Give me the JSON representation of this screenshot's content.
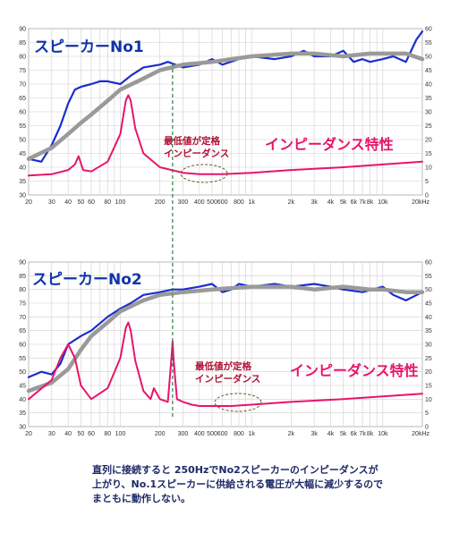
{
  "chart_data": [
    {
      "type": "line",
      "title": "スピーカーNo1",
      "x_scale": "log",
      "xlim": [
        20,
        20000
      ],
      "ylim_left": [
        30,
        90
      ],
      "ylim_right": [
        0,
        60
      ],
      "y_left_ticks": [
        30,
        35,
        40,
        45,
        50,
        55,
        60,
        65,
        70,
        75,
        80,
        85,
        90
      ],
      "y_right_ticks": [
        0,
        5,
        10,
        15,
        20,
        25,
        30,
        35,
        40,
        45,
        50,
        55,
        60
      ],
      "x_ticks": [
        "20",
        "30",
        "40",
        "50",
        "60",
        "80",
        "100",
        "200",
        "300",
        "400",
        "500",
        "600",
        "800",
        "1k",
        "2k",
        "3k",
        "4k",
        "5k",
        "6k",
        "7k",
        "8k",
        "10k",
        "20kHz"
      ],
      "grid": true,
      "impedance_label": "インピーダンス特性",
      "annotation": [
        "最低値が定格",
        "インピーダンス"
      ],
      "series": [
        {
          "color": "#1a2ecc",
          "axis": "left",
          "x": [
            20,
            25,
            30,
            35,
            40,
            45,
            50,
            60,
            70,
            80,
            100,
            120,
            150,
            200,
            230,
            300,
            400,
            500,
            600,
            800,
            1000,
            1500,
            2000,
            2500,
            3000,
            4000,
            5000,
            6000,
            7000,
            8000,
            10000,
            12000,
            15000,
            18000,
            20000
          ],
          "values": [
            43,
            42,
            48,
            55,
            63,
            68,
            69,
            70,
            71,
            71,
            70,
            73,
            76,
            77,
            78,
            76,
            77,
            79,
            77,
            79,
            80,
            79,
            80,
            82,
            80,
            80,
            82,
            78,
            79,
            78,
            79,
            80,
            78,
            86,
            89
          ]
        },
        {
          "color": "#9a9a9a",
          "axis": "left",
          "x": [
            20,
            30,
            40,
            50,
            60,
            80,
            100,
            150,
            200,
            300,
            500,
            1000,
            2000,
            3000,
            5000,
            8000,
            10000,
            15000,
            20000
          ],
          "values": [
            43,
            47,
            52,
            56,
            59,
            64,
            68,
            72,
            75,
            77,
            78,
            80,
            81,
            81,
            80,
            81,
            81,
            81,
            79
          ]
        },
        {
          "color": "#e8146a",
          "axis": "right",
          "x": [
            20,
            30,
            40,
            45,
            48,
            52,
            60,
            80,
            100,
            110,
            115,
            120,
            130,
            150,
            200,
            300,
            400,
            600,
            1000,
            2000,
            5000,
            10000,
            20000
          ],
          "values": [
            7,
            7.5,
            9,
            11,
            14,
            9,
            8.5,
            12,
            22,
            34,
            36,
            34,
            24,
            15,
            10,
            8,
            7.5,
            7.5,
            8,
            9,
            10,
            11,
            12
          ]
        }
      ]
    },
    {
      "type": "line",
      "title": "スピーカーNo2",
      "x_scale": "log",
      "xlim": [
        20,
        20000
      ],
      "ylim_left": [
        30,
        90
      ],
      "ylim_right": [
        0,
        60
      ],
      "y_left_ticks": [
        30,
        35,
        40,
        45,
        50,
        55,
        60,
        65,
        70,
        75,
        80,
        85,
        90
      ],
      "y_right_ticks": [
        0,
        5,
        10,
        15,
        20,
        25,
        30,
        35,
        40,
        45,
        50,
        55,
        60
      ],
      "x_ticks": [
        "20",
        "30",
        "40",
        "50",
        "60",
        "80",
        "100",
        "200",
        "300",
        "400",
        "500",
        "600",
        "800",
        "1k",
        "2k",
        "3k",
        "4k",
        "5k",
        "6k",
        "7k",
        "8k",
        "10k",
        "20kHz"
      ],
      "grid": true,
      "impedance_label": "インピーダンス特性",
      "annotation": [
        "最低値が定格",
        "インピーダンス"
      ],
      "series": [
        {
          "color": "#1a2ecc",
          "axis": "left",
          "x": [
            20,
            25,
            30,
            35,
            40,
            50,
            60,
            80,
            100,
            120,
            150,
            200,
            250,
            300,
            400,
            500,
            600,
            700,
            800,
            1000,
            1500,
            2000,
            3000,
            4000,
            5000,
            7000,
            10000,
            12000,
            15000,
            20000
          ],
          "values": [
            48,
            50,
            49,
            53,
            60,
            63,
            65,
            70,
            73,
            75,
            78,
            79,
            80,
            80,
            81,
            82,
            79,
            80,
            82,
            81,
            82,
            81,
            82,
            81,
            80,
            79,
            81,
            78,
            76,
            79
          ]
        },
        {
          "color": "#9a9a9a",
          "axis": "left",
          "x": [
            20,
            30,
            40,
            50,
            60,
            80,
            100,
            150,
            200,
            300,
            500,
            1000,
            2000,
            3000,
            5000,
            8000,
            10000,
            15000,
            20000
          ],
          "values": [
            43,
            46,
            51,
            58,
            63,
            68,
            72,
            76,
            78,
            79,
            80,
            81,
            81,
            80,
            81,
            80,
            80,
            79,
            79
          ]
        },
        {
          "color": "#e8146a",
          "axis": "right",
          "x": [
            20,
            30,
            35,
            40,
            45,
            50,
            60,
            80,
            100,
            110,
            115,
            120,
            130,
            150,
            170,
            180,
            200,
            230,
            245,
            250,
            255,
            270,
            300,
            350,
            400,
            500,
            700,
            1000,
            2000,
            5000,
            10000,
            20000
          ],
          "values": [
            10,
            17,
            25,
            30,
            25,
            15,
            10,
            14,
            25,
            36,
            38,
            35,
            24,
            13,
            10,
            14,
            10,
            9,
            25,
            31,
            24,
            10,
            9,
            8,
            7.5,
            7.5,
            7.5,
            8,
            9,
            10,
            11,
            12
          ]
        }
      ]
    }
  ],
  "caption": [
    "直列に接続すると 250HzでNo2スピーカーのインピーダンスが",
    "上がり、No.1スピーカーに供給される電圧が大幅に減少するので",
    "まともに動作しない。"
  ]
}
